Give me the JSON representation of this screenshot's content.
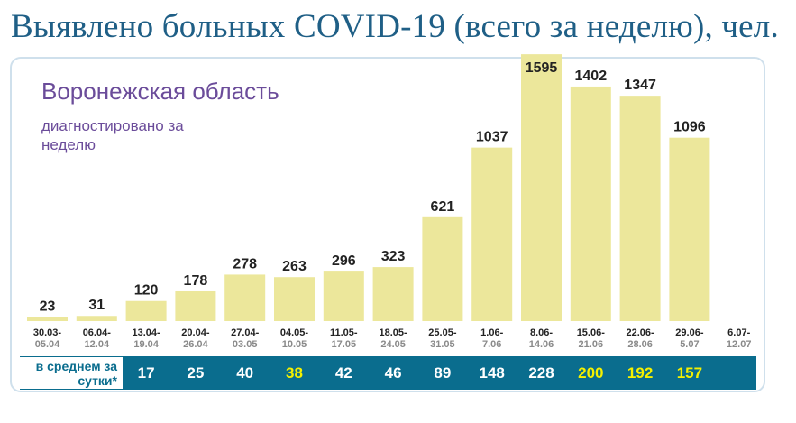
{
  "title": "Выявлено больных COVID-19 (всего за неделю), чел.",
  "region": "Воронежская область",
  "subtitle": "диагностировано за неделю",
  "colors": {
    "bar": "#ece79b",
    "band": "#0a6d8e",
    "title": "#1f5f86",
    "region": "#6b4c9a",
    "avg_default": "#ffffff",
    "avg_highlight": "#f5f000"
  },
  "chart_data": {
    "type": "bar",
    "title": "Выявлено больных COVID-19 (всего за неделю), чел.",
    "categories": [
      {
        "from": "30.03-",
        "to": "05.04"
      },
      {
        "from": "06.04-",
        "to": "12.04"
      },
      {
        "from": "13.04-",
        "to": "19.04"
      },
      {
        "from": "20.04-",
        "to": "26.04"
      },
      {
        "from": "27.04-",
        "to": "03.05"
      },
      {
        "from": "04.05-",
        "to": "10.05"
      },
      {
        "from": "11.05-",
        "to": "17.05"
      },
      {
        "from": "18.05-",
        "to": "24.05"
      },
      {
        "from": "25.05-",
        "to": "31.05"
      },
      {
        "from": "1.06-",
        "to": "7.06"
      },
      {
        "from": "8.06-",
        "to": "14.06"
      },
      {
        "from": "15.06-",
        "to": "21.06"
      },
      {
        "from": "22.06-",
        "to": "28.06"
      },
      {
        "from": "29.06-",
        "to": "5.07"
      },
      {
        "from": "6.07-",
        "to": "12.07"
      }
    ],
    "values": [
      23,
      31,
      120,
      178,
      278,
      263,
      296,
      323,
      621,
      1037,
      1595,
      1402,
      1347,
      1096,
      null
    ],
    "value_labels": [
      "23",
      "31",
      "120",
      "178",
      "278",
      "263",
      "296",
      "323",
      "621",
      "1037",
      "1595",
      "1402",
      "1347",
      "1096",
      ""
    ],
    "daily_average_label": "в среднем за сутки*",
    "daily_average": [
      "17",
      "25",
      "40",
      "38",
      "42",
      "46",
      "89",
      "148",
      "228",
      "200",
      "192",
      "157"
    ],
    "daily_average_highlight": [
      false,
      false,
      false,
      true,
      false,
      false,
      false,
      false,
      false,
      true,
      true,
      true
    ]
  }
}
